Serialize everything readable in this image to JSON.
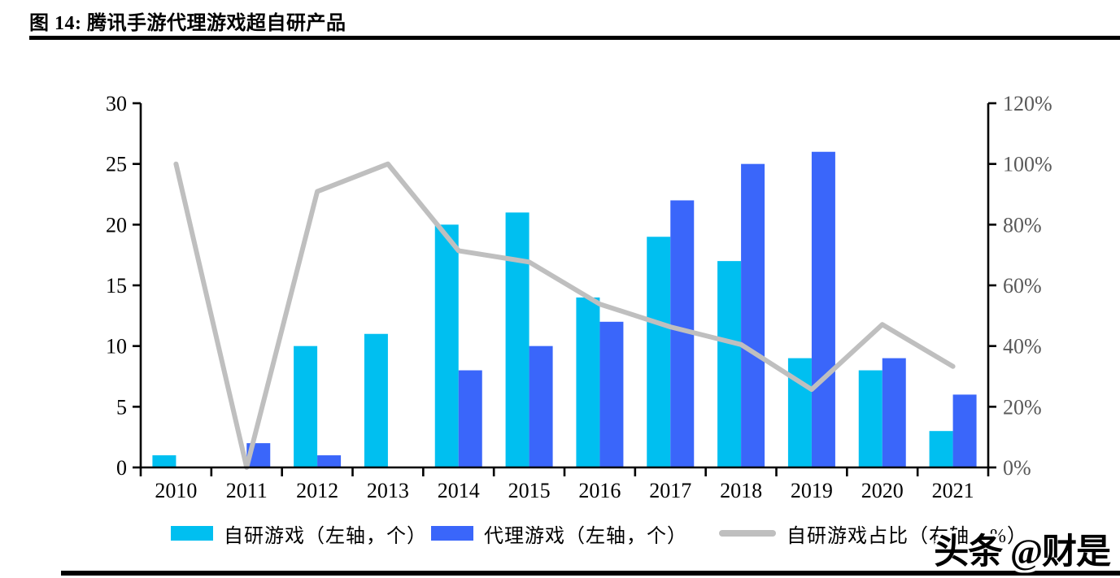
{
  "title": "图 14: 腾讯手游代理游戏超自研产品",
  "watermark": "头条 @财是",
  "colors": {
    "self_dev": "#00bff0",
    "licensed": "#3a66fa",
    "ratio_line": "#bfbfbf",
    "axis": "#000000",
    "right_axis_label": "#595959"
  },
  "legend": {
    "items": [
      {
        "label": "自研游戏（左轴，个）",
        "type": "bar",
        "color_key": "self_dev"
      },
      {
        "label": "代理游戏（左轴，个）",
        "type": "bar",
        "color_key": "licensed"
      },
      {
        "label": "自研游戏占比（右轴，%）",
        "type": "line",
        "color_key": "ratio_line"
      }
    ]
  },
  "chart_data": {
    "type": "bar",
    "subtype": "grouped-bars-with-line",
    "title": "",
    "categories": [
      "2010",
      "2011",
      "2012",
      "2013",
      "2014",
      "2015",
      "2016",
      "2017",
      "2018",
      "2019",
      "2020",
      "2021"
    ],
    "series": [
      {
        "name": "自研游戏（左轴，个）",
        "type": "bar",
        "axis": "left",
        "color_key": "self_dev",
        "values": [
          1,
          0,
          10,
          11,
          20,
          21,
          14,
          19,
          17,
          9,
          8,
          3
        ]
      },
      {
        "name": "代理游戏（左轴，个）",
        "type": "bar",
        "axis": "left",
        "color_key": "licensed",
        "values": [
          0,
          2,
          1,
          0,
          8,
          10,
          12,
          22,
          25,
          26,
          9,
          6
        ]
      },
      {
        "name": "自研游戏占比（右轴，%）",
        "type": "line",
        "axis": "right",
        "color_key": "ratio_line",
        "values": [
          100,
          0,
          90.9,
          100,
          71.4,
          67.7,
          53.8,
          46.3,
          40.5,
          25.7,
          47.1,
          33.3
        ]
      }
    ],
    "left_axis": {
      "min": 0,
      "max": 30,
      "step": 5,
      "ticks": [
        "0",
        "5",
        "10",
        "15",
        "20",
        "25",
        "30"
      ]
    },
    "right_axis": {
      "min": 0,
      "max": 120,
      "step": 20,
      "ticks": [
        "0%",
        "20%",
        "40%",
        "60%",
        "80%",
        "100%",
        "120%"
      ]
    },
    "xlabel": "",
    "ylabel": "",
    "grid": false,
    "legend_position": "bottom"
  }
}
